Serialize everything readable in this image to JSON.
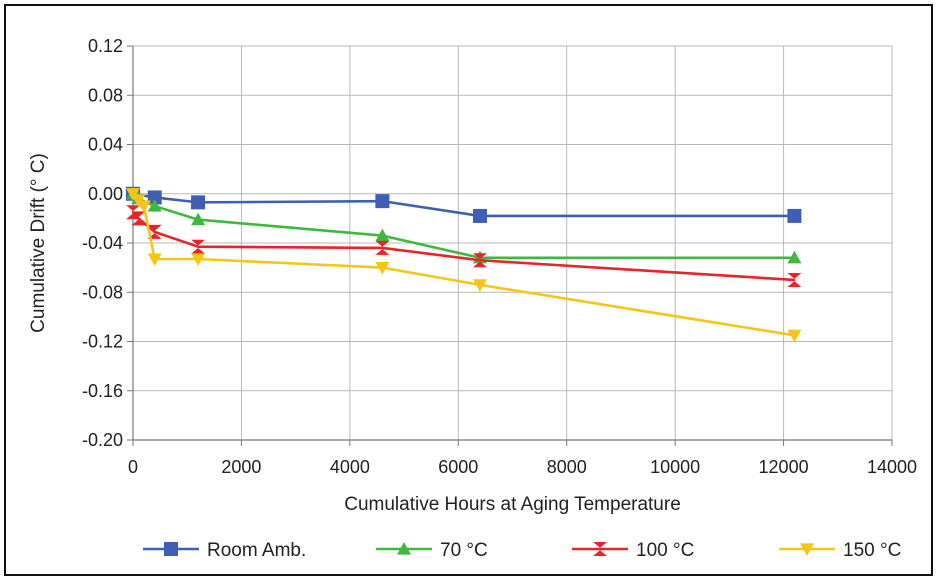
{
  "chart_data": {
    "type": "line",
    "xlabel": "Cumulative Hours at Aging Temperature",
    "ylabel": "Cumulative Drift (° C)",
    "xlim": [
      0,
      14000
    ],
    "ylim": [
      -0.2,
      0.12
    ],
    "xticks": [
      "0",
      "2000",
      "4000",
      "6000",
      "8000",
      "10000",
      "12000",
      "14000"
    ],
    "yticks": [
      "0.12",
      "0.08",
      "0.04",
      "0.00",
      "-0.04",
      "-0.08",
      "-0.12",
      "-0.16",
      "-0.20"
    ],
    "grid": true,
    "legend_position": "bottom",
    "series": [
      {
        "name": "Room Amb.",
        "color": "#3e5fb5",
        "marker": "square",
        "x": [
          0,
          400,
          1200,
          4600,
          6400,
          12200
        ],
        "y": [
          0.0,
          -0.003,
          -0.007,
          -0.006,
          -0.018,
          -0.018
        ]
      },
      {
        "name": "70 °C",
        "color": "#3fb83f",
        "marker": "triangle-up",
        "x": [
          0,
          100,
          400,
          1200,
          4600,
          6400,
          12200
        ],
        "y": [
          0.0,
          -0.004,
          -0.01,
          -0.021,
          -0.034,
          -0.052,
          -0.052
        ]
      },
      {
        "name": "100 °C",
        "color": "#e8232a",
        "marker": "bowtie",
        "x": [
          0,
          100,
          400,
          1200,
          4600,
          6400,
          12200
        ],
        "y": [
          -0.015,
          -0.02,
          -0.031,
          -0.043,
          -0.044,
          -0.054,
          -0.07
        ]
      },
      {
        "name": "150 °C",
        "color": "#f5c518",
        "marker": "triangle-down",
        "x": [
          0,
          100,
          200,
          400,
          1200,
          4600,
          6400,
          12200
        ],
        "y": [
          0.0,
          -0.005,
          -0.01,
          -0.053,
          -0.053,
          -0.06,
          -0.074,
          -0.115
        ]
      }
    ]
  }
}
